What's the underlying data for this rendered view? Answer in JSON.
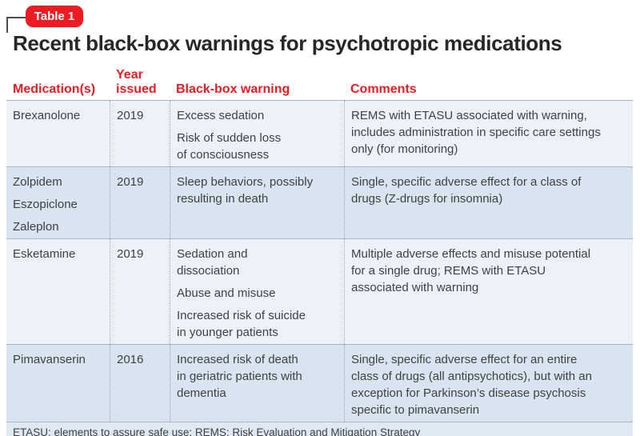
{
  "badge": {
    "label": "Table 1"
  },
  "title": "Recent black-box warnings for psychotropic medications",
  "table": {
    "columns": [
      "Medication(s)",
      "Year issued",
      "Black-box warning",
      "Comments"
    ],
    "rows": [
      {
        "medications": [
          "Brexanolone"
        ],
        "year": "2019",
        "warnings": [
          "Excess sedation",
          "Risk of sudden loss\nof consciousness"
        ],
        "comments": "REMS with ETASU associated with warning,\nincludes administration in specific care settings\nonly (for monitoring)"
      },
      {
        "medications": [
          "Zolpidem",
          "Eszopiclone",
          "Zaleplon"
        ],
        "year": "2019",
        "warnings": [
          "Sleep behaviors, possibly\nresulting in death"
        ],
        "comments": "Single, specific adverse effect for a class of\ndrugs (Z-drugs for insomnia)"
      },
      {
        "medications": [
          "Esketamine"
        ],
        "year": "2019",
        "warnings": [
          "Sedation and\ndissociation",
          "Abuse and misuse",
          "Increased risk of suicide\nin younger patients"
        ],
        "comments": "Multiple adverse effects and misuse potential\nfor a single drug; REMS with ETASU\nassociated with warning"
      },
      {
        "medications": [
          "Pimavanserin"
        ],
        "year": "2016",
        "warnings": [
          "Increased risk of death\nin geriatric patients with\ndementia"
        ],
        "comments": "Single, specific adverse effect for an entire\nclass of drugs (all antipsychotics), but with an\nexception for Parkinson’s disease psychosis\nspecific to pimavanserin"
      }
    ],
    "footnote": "ETASU: elements to assure safe use; REMS: Risk Evaluation and Mitigation Strategy"
  },
  "colors": {
    "accent_red": "#ed1c24",
    "row_light": "#eef2f8",
    "row_dark": "#d9e4f1",
    "footer_bg": "#dfe9f4"
  }
}
